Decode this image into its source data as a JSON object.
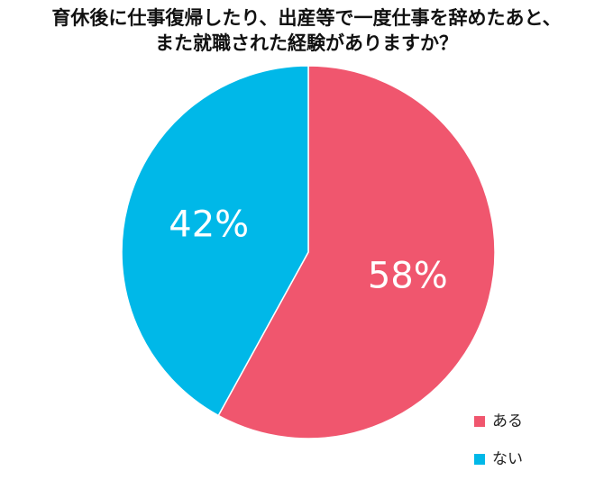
{
  "chart_data": {
    "type": "pie",
    "title": [
      "育休後に仕事復帰したり、出産等で一度仕事を辞めたあと、",
      "また就職された経験がありますか？"
    ],
    "categories": [
      "ある",
      "ない"
    ],
    "values": [
      58,
      42
    ],
    "value_labels": [
      "58%",
      "42%"
    ],
    "colors": [
      "#f0566e",
      "#00b8e8"
    ],
    "legend": "bottom-right"
  }
}
